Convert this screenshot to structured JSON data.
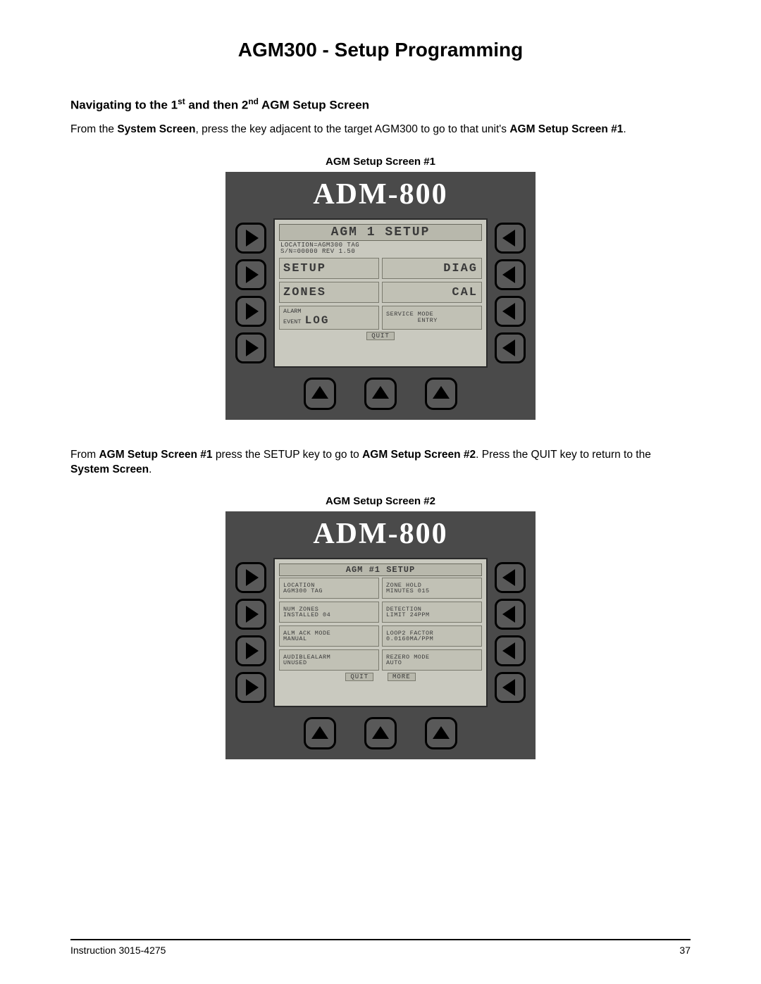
{
  "page": {
    "title": "AGM300 - Setup Programming",
    "page_no": "37"
  },
  "section": {
    "heading_pre": "Navigating to the 1",
    "heading_sup1": "st",
    "heading_mid": " and then 2",
    "heading_sup2": "nd",
    "heading_post": " AGM Setup Screen"
  },
  "para1": {
    "p1": "From the ",
    "b1": "System Screen",
    "p2": ", press the key adjacent to the target AGM300 to go to that unit's ",
    "b2": "AGM Setup Screen #1",
    "p3": "."
  },
  "para2": {
    "p1": "From ",
    "b1": "AGM Setup Screen #1",
    "p2": " press the SETUP key to go to ",
    "b2": "AGM Setup Screen #2",
    "p3": ". Press the QUIT key to return to the ",
    "b3": "System Screen",
    "p4": "."
  },
  "footer": {
    "left": "Instruction 3015-4275"
  },
  "screen1": {
    "caption": "AGM Setup Screen #1",
    "logo": "ADM-800",
    "lcd": {
      "title": "AGM 1 SETUP",
      "sub": "LOCATION=AGM300 TAG\nS/N=00000 REV 1.50",
      "cells": [
        {
          "txt": "SETUP",
          "cls": "cell-big"
        },
        {
          "txt": "DIAG",
          "cls": "cell-big right"
        },
        {
          "txt": "ZONES",
          "cls": "cell-big"
        },
        {
          "txt": "CAL",
          "cls": "cell-big right"
        }
      ],
      "log_label_small": "ALARM\nEVENT",
      "log_label_big": "LOG",
      "svc": "SERVICE MODE\n        ENTRY",
      "footer": [
        "QUIT"
      ]
    }
  },
  "screen2": {
    "caption": "AGM Setup Screen #2",
    "logo": "ADM-800",
    "lcd": {
      "title": "AGM #1 SETUP",
      "cells": [
        {
          "l1": "LOCATION",
          "l2": "AGM300 TAG"
        },
        {
          "l1": "ZONE HOLD",
          "l2": "MINUTES 015"
        },
        {
          "l1": "NUM ZONES",
          "l2": "INSTALLED 04"
        },
        {
          "l1": "DETECTION",
          "l2": "LIMIT 24PPM"
        },
        {
          "l1": "ALM ACK MODE",
          "l2": "MANUAL"
        },
        {
          "l1": "LOOP2 FACTOR",
          "l2": "0.0160MA/PPM"
        },
        {
          "l1": "AUDIBLEALARM",
          "l2": "UNUSED"
        },
        {
          "l1": "REZERO MODE",
          "l2": "AUTO"
        }
      ],
      "footer": [
        "QUIT",
        "MORE"
      ]
    }
  }
}
